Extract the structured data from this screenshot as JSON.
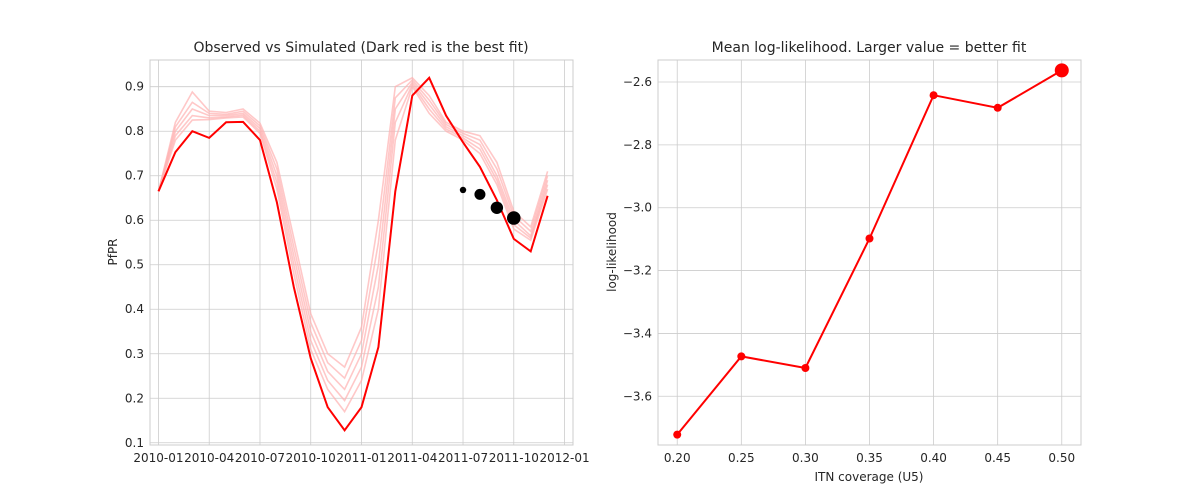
{
  "chart_data": [
    {
      "type": "line",
      "title": "Observed vs Simulated (Dark red is the best fit)",
      "xlabel": "",
      "ylabel": "PfPR",
      "x_tick_labels": [
        "2010-01",
        "2010-04",
        "2010-07",
        "2010-10",
        "2011-01",
        "2011-04",
        "2011-07",
        "2011-10",
        "2012-01"
      ],
      "y_ticks": [
        0.1,
        0.2,
        0.3,
        0.4,
        0.5,
        0.6,
        0.7,
        0.8,
        0.9
      ],
      "ylim": [
        0.095,
        0.96
      ],
      "grid": true,
      "x_months": [
        "2010-01",
        "2010-02",
        "2010-03",
        "2010-04",
        "2010-05",
        "2010-06",
        "2010-07",
        "2010-08",
        "2010-09",
        "2010-10",
        "2010-11",
        "2010-12",
        "2011-01",
        "2011-02",
        "2011-03",
        "2011-04",
        "2011-05",
        "2011-06",
        "2011-07",
        "2011-08",
        "2011-09",
        "2011-10",
        "2011-11",
        "2011-12"
      ],
      "best_fit": {
        "color": "#ff0000",
        "values": [
          0.665,
          0.753,
          0.8,
          0.785,
          0.82,
          0.821,
          0.78,
          0.64,
          0.45,
          0.29,
          0.18,
          0.128,
          0.18,
          0.315,
          0.665,
          0.88,
          0.92,
          0.835,
          0.775,
          0.72,
          0.645,
          0.558,
          0.53,
          0.655
        ]
      },
      "other_fits": {
        "color": "#ffb0b0",
        "series": [
          {
            "values": [
              0.665,
              0.82,
              0.888,
              0.845,
              0.842,
              0.85,
              0.818,
              0.73,
              0.56,
              0.39,
              0.3,
              0.27,
              0.36,
              0.6,
              0.9,
              0.92,
              0.88,
              0.82,
              0.8,
              0.79,
              0.73,
              0.62,
              0.585,
              0.71
            ]
          },
          {
            "values": [
              0.665,
              0.81,
              0.865,
              0.84,
              0.838,
              0.845,
              0.812,
              0.715,
              0.54,
              0.37,
              0.28,
              0.245,
              0.33,
              0.55,
              0.875,
              0.915,
              0.87,
              0.815,
              0.795,
              0.78,
              0.715,
              0.61,
              0.575,
              0.7
            ]
          },
          {
            "values": [
              0.665,
              0.8,
              0.85,
              0.835,
              0.835,
              0.84,
              0.806,
              0.7,
              0.52,
              0.35,
              0.26,
              0.22,
              0.3,
              0.5,
              0.85,
              0.91,
              0.86,
              0.81,
              0.79,
              0.77,
              0.7,
              0.6,
              0.565,
              0.69
            ]
          },
          {
            "values": [
              0.665,
              0.79,
              0.835,
              0.83,
              0.832,
              0.836,
              0.8,
              0.685,
              0.5,
              0.33,
              0.24,
              0.195,
              0.27,
              0.45,
              0.82,
              0.905,
              0.85,
              0.805,
              0.785,
              0.76,
              0.69,
              0.59,
              0.56,
              0.68
            ]
          },
          {
            "values": [
              0.665,
              0.78,
              0.825,
              0.826,
              0.83,
              0.832,
              0.795,
              0.67,
              0.48,
              0.31,
              0.22,
              0.17,
              0.24,
              0.4,
              0.78,
              0.9,
              0.84,
              0.8,
              0.78,
              0.75,
              0.68,
              0.58,
              0.555,
              0.67
            ]
          }
        ]
      },
      "observed": {
        "color": "#000000",
        "points": [
          {
            "month": "2011-07",
            "value": 0.668
          },
          {
            "month": "2011-08",
            "value": 0.658
          },
          {
            "month": "2011-09",
            "value": 0.628
          },
          {
            "month": "2011-10",
            "value": 0.605
          }
        ]
      }
    },
    {
      "type": "line",
      "title": "Mean log-likelihood. Larger value = better fit",
      "xlabel": "ITN coverage (U5)",
      "ylabel": "log-likelihood",
      "x_ticks": [
        0.2,
        0.25,
        0.3,
        0.35,
        0.4,
        0.45,
        0.5
      ],
      "x_tick_labels": [
        "0.20",
        "0.25",
        "0.30",
        "0.35",
        "0.40",
        "0.45",
        "0.50"
      ],
      "xlim": [
        0.185,
        0.515
      ],
      "y_ticks": [
        -3.6,
        -3.4,
        -3.2,
        -3.0,
        -2.8,
        -2.6
      ],
      "y_tick_labels": [
        "−3.6",
        "−3.4",
        "−3.2",
        "−3.0",
        "−2.8",
        "−2.6"
      ],
      "ylim": [
        -3.755,
        -2.53
      ],
      "grid": true,
      "color": "#ff0000",
      "best_index": 6,
      "x": [
        0.2,
        0.25,
        0.3,
        0.35,
        0.4,
        0.45,
        0.5
      ],
      "values": [
        -3.722,
        -3.473,
        -3.51,
        -3.098,
        -2.642,
        -2.682,
        -2.563
      ]
    }
  ]
}
